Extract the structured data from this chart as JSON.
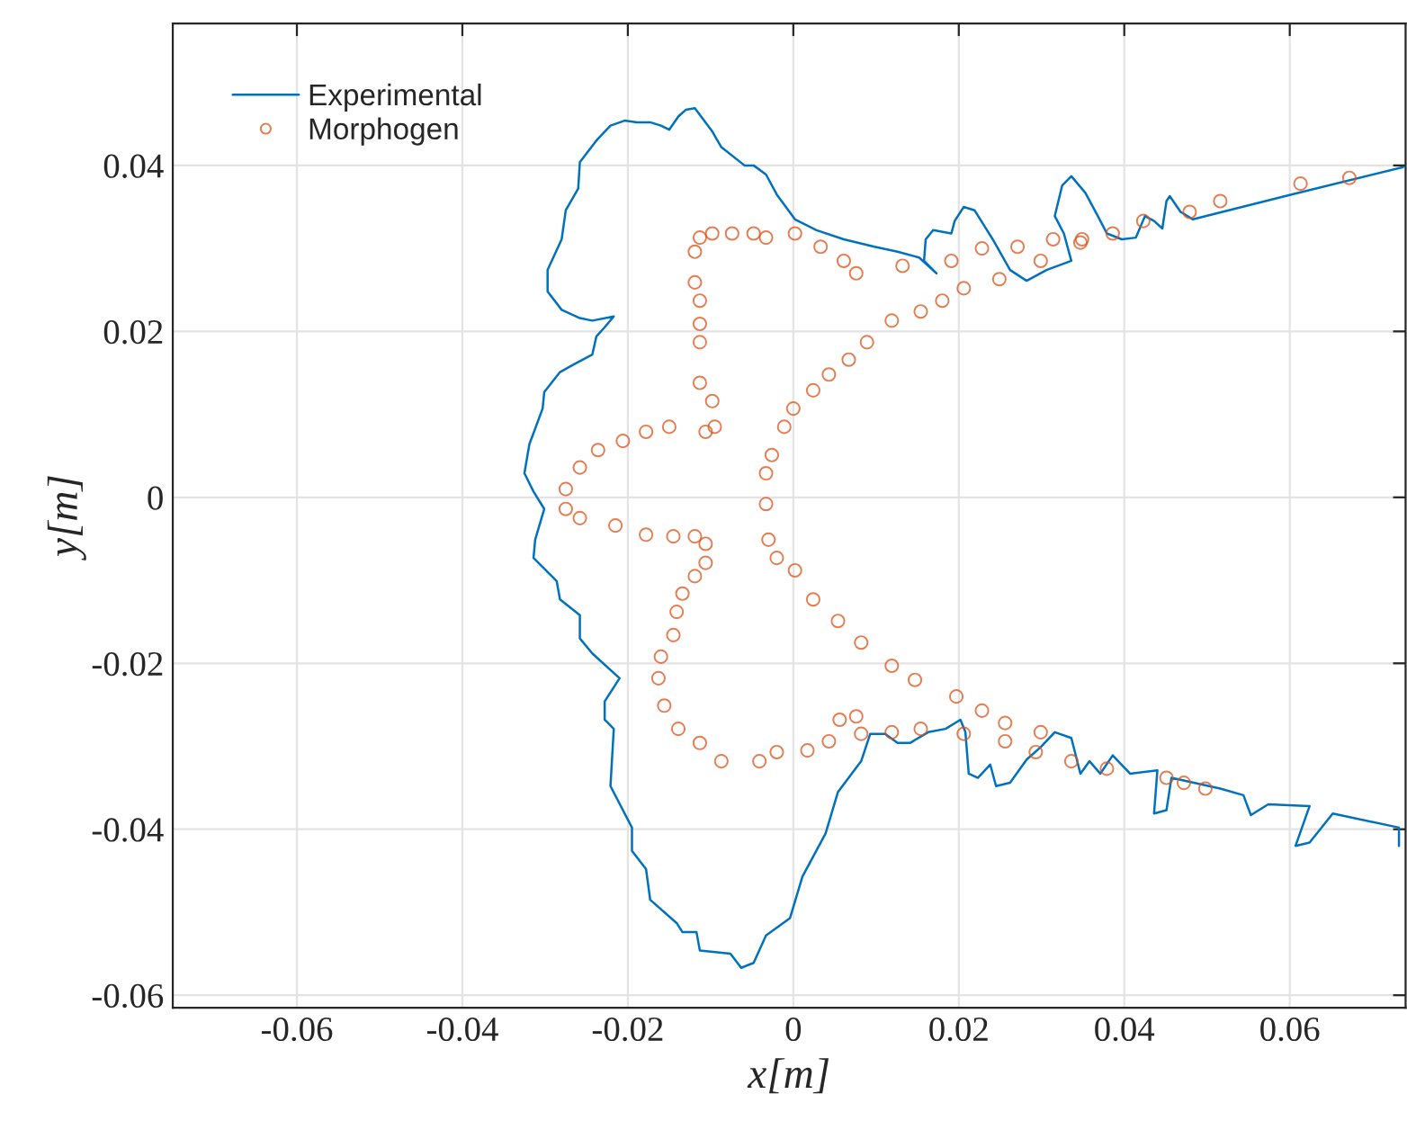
{
  "chart_data": {
    "type": "line",
    "xlabel": "x[m]",
    "ylabel": "y[m]",
    "xlim": [
      -0.075,
      0.074
    ],
    "ylim": [
      -0.0615,
      0.0571
    ],
    "xticks": [
      -0.06,
      -0.04,
      -0.02,
      0,
      0.02,
      0.04,
      0.06
    ],
    "yticks": [
      -0.06,
      -0.04,
      -0.02,
      0,
      0.02,
      0.04
    ],
    "grid": true,
    "legend": "top left",
    "series": [
      {
        "name": "Experimental",
        "marker": "none",
        "line_style": "solid",
        "color": "#0072bd",
        "x": [
          0.0737,
          0.0602,
          0.0483,
          0.0468,
          0.0455,
          0.0451,
          0.0446,
          0.0436,
          0.0425,
          0.0414,
          0.0397,
          0.0379,
          0.0368,
          0.0353,
          0.0336,
          0.0325,
          0.0316,
          0.0327,
          0.0336,
          0.0306,
          0.0282,
          0.0262,
          0.0241,
          0.0219,
          0.0206,
          0.0195,
          0.0191,
          0.0169,
          0.016,
          0.0158,
          0.0173,
          0.0152,
          0.0126,
          0.0098,
          0.0061,
          0.0028,
          0.0002,
          -0.002,
          -0.0033,
          -0.0048,
          -0.0059,
          -0.0087,
          -0.0098,
          -0.0119,
          -0.013,
          -0.0139,
          -0.015,
          -0.016,
          -0.0173,
          -0.0189,
          -0.0204,
          -0.0221,
          -0.0238,
          -0.0258,
          -0.026,
          -0.0275,
          -0.028,
          -0.0297,
          -0.0297,
          -0.028,
          -0.0258,
          -0.0243,
          -0.0217,
          -0.0228,
          -0.0238,
          -0.0243,
          -0.0264,
          -0.0282,
          -0.0301,
          -0.0303,
          -0.0319,
          -0.0325,
          -0.0314,
          -0.0301,
          -0.0312,
          -0.0314,
          -0.0286,
          -0.0282,
          -0.0258,
          -0.0258,
          -0.0243,
          -0.021,
          -0.0228,
          -0.0228,
          -0.0217,
          -0.0221,
          -0.0195,
          -0.0195,
          -0.0178,
          -0.0173,
          -0.0141,
          -0.0134,
          -0.0117,
          -0.0113,
          -0.0076,
          -0.0063,
          -0.0048,
          -0.0033,
          -0.0004,
          0.0011,
          0.0039,
          0.0054,
          0.0082,
          0.0093,
          0.0111,
          0.0126,
          0.0141,
          0.0163,
          0.0184,
          0.0202,
          0.0208,
          0.0212,
          0.0223,
          0.0238,
          0.0245,
          0.0262,
          0.0282,
          0.0299,
          0.0316,
          0.0336,
          0.0347,
          0.0358,
          0.0371,
          0.0386,
          0.0407,
          0.044,
          0.0436,
          0.0451,
          0.0457,
          0.0516,
          0.0544,
          0.0553,
          0.0574,
          0.0624,
          0.0607,
          0.0624,
          0.0652,
          0.0732,
          0.0732
        ],
        "values": [
          0.0398,
          0.0365,
          0.0335,
          0.0344,
          0.0363,
          0.0357,
          0.0324,
          0.0333,
          0.0339,
          0.0313,
          0.0311,
          0.0318,
          0.0339,
          0.0367,
          0.0387,
          0.0376,
          0.0339,
          0.0318,
          0.0285,
          0.0274,
          0.0261,
          0.0274,
          0.0311,
          0.0346,
          0.035,
          0.0333,
          0.0318,
          0.0322,
          0.0311,
          0.0285,
          0.027,
          0.0289,
          0.0296,
          0.0302,
          0.0311,
          0.0322,
          0.0335,
          0.0365,
          0.0389,
          0.04,
          0.04,
          0.0422,
          0.0441,
          0.0469,
          0.0467,
          0.0459,
          0.0443,
          0.0448,
          0.0452,
          0.0452,
          0.0454,
          0.0448,
          0.043,
          0.0404,
          0.0372,
          0.0346,
          0.0311,
          0.0274,
          0.0248,
          0.0226,
          0.0216,
          0.0213,
          0.0218,
          0.0205,
          0.0194,
          0.0172,
          0.0161,
          0.0151,
          0.0127,
          0.0107,
          0.0064,
          0.0029,
          0.0007,
          -0.0014,
          -0.0051,
          -0.0073,
          -0.0101,
          -0.0123,
          -0.0142,
          -0.017,
          -0.0188,
          -0.0218,
          -0.0246,
          -0.0268,
          -0.0279,
          -0.0348,
          -0.0398,
          -0.0426,
          -0.0448,
          -0.0485,
          -0.0513,
          -0.0524,
          -0.0524,
          -0.0546,
          -0.055,
          -0.0567,
          -0.0561,
          -0.0528,
          -0.0507,
          -0.0457,
          -0.0405,
          -0.0355,
          -0.0318,
          -0.0285,
          -0.0285,
          -0.0296,
          -0.0296,
          -0.0283,
          -0.0279,
          -0.0268,
          -0.0283,
          -0.0333,
          -0.0338,
          -0.0322,
          -0.0348,
          -0.0344,
          -0.0316,
          -0.0301,
          -0.0283,
          -0.029,
          -0.0333,
          -0.0318,
          -0.0333,
          -0.0311,
          -0.0333,
          -0.0329,
          -0.0381,
          -0.0377,
          -0.0338,
          -0.0351,
          -0.0359,
          -0.0383,
          -0.037,
          -0.0372,
          -0.042,
          -0.0416,
          -0.0381,
          -0.0398,
          -0.042
        ]
      },
      {
        "name": "Morphogen",
        "type": "scatter",
        "marker": "circle",
        "color": "#d95319",
        "x": [
          0.0672,
          0.0613,
          0.0516,
          0.0479,
          0.0423,
          0.0386,
          0.0349,
          0.0314,
          0.0271,
          0.0228,
          0.0191,
          0.0132,
          0.0076,
          0.0061,
          0.0033,
          0.0002,
          -0.0033,
          -0.0048,
          -0.0074,
          -0.0098,
          -0.0113,
          -0.0119,
          -0.0119,
          -0.0113,
          -0.0113,
          -0.0113,
          -0.0113,
          -0.0098,
          -0.0095,
          -0.0106,
          -0.015,
          -0.0178,
          -0.0206,
          -0.0236,
          -0.0258,
          -0.0275,
          -0.0275,
          -0.0258,
          -0.0215,
          -0.0178,
          -0.0145,
          -0.0119,
          -0.0106,
          -0.0106,
          -0.0119,
          -0.0134,
          -0.0141,
          -0.0145,
          -0.016,
          -0.0163,
          -0.0156,
          -0.0139,
          -0.0113,
          -0.0087,
          -0.0041,
          -0.002,
          0.0017,
          0.0043,
          0.0056,
          0.0076,
          0.0082,
          0.0119,
          0.0154,
          0.0206,
          0.0256,
          0.0293,
          0.0336,
          0.0379,
          0.0451,
          0.0472,
          0.0498,
          0.0299,
          0.0256,
          0.0228,
          0.0197,
          0.0147,
          0.0119,
          0.0082,
          0.0054,
          0.0024,
          0.0002,
          -0.002,
          -0.003,
          -0.0033,
          -0.0033,
          -0.0026,
          -0.0011,
          0.0,
          0.0024,
          0.0043,
          0.0067,
          0.0089,
          0.0119,
          0.0154,
          0.018,
          0.0206,
          0.0249,
          0.0299,
          0.0347
        ],
        "values": [
          0.0385,
          0.0378,
          0.0357,
          0.0344,
          0.0333,
          0.0318,
          0.0311,
          0.0311,
          0.0302,
          0.03,
          0.0285,
          0.0279,
          0.027,
          0.0285,
          0.0302,
          0.0318,
          0.0313,
          0.0318,
          0.0318,
          0.0318,
          0.0313,
          0.0296,
          0.0259,
          0.0237,
          0.0209,
          0.0187,
          0.0138,
          0.0116,
          0.0085,
          0.0079,
          0.0085,
          0.0079,
          0.0068,
          0.0057,
          0.0036,
          0.001,
          -0.0014,
          -0.0025,
          -0.0034,
          -0.0045,
          -0.0047,
          -0.0047,
          -0.0056,
          -0.0079,
          -0.0095,
          -0.0116,
          -0.0138,
          -0.0166,
          -0.0192,
          -0.0218,
          -0.0251,
          -0.0279,
          -0.0296,
          -0.0318,
          -0.0318,
          -0.0307,
          -0.0305,
          -0.0294,
          -0.0268,
          -0.0264,
          -0.0285,
          -0.0283,
          -0.0279,
          -0.0285,
          -0.0294,
          -0.0307,
          -0.0318,
          -0.0327,
          -0.0338,
          -0.0344,
          -0.0351,
          -0.0283,
          -0.0272,
          -0.0257,
          -0.024,
          -0.022,
          -0.0203,
          -0.0175,
          -0.0149,
          -0.0123,
          -0.0088,
          -0.0073,
          -0.0051,
          -0.0008,
          0.0029,
          0.0051,
          0.0085,
          0.0107,
          0.0129,
          0.0148,
          0.0166,
          0.0187,
          0.0213,
          0.0224,
          0.0237,
          0.0252,
          0.0263,
          0.0285,
          0.0307
        ]
      }
    ]
  }
}
